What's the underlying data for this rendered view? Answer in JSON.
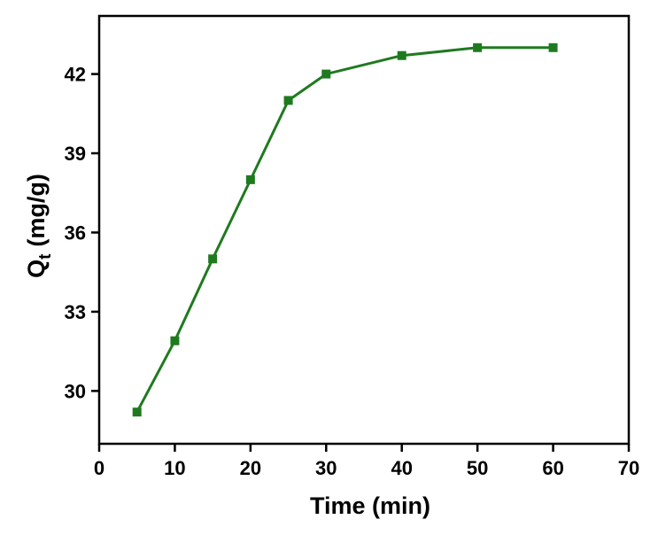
{
  "chart_data": {
    "type": "line",
    "title": "",
    "xlabel": "Time (min)",
    "ylabel": {
      "symbol": "Q",
      "subscript": "t",
      "unit": "(mg/g)"
    },
    "xlim": [
      0,
      70
    ],
    "ylim": [
      28,
      44.2
    ],
    "xticks": [
      0,
      10,
      20,
      30,
      40,
      50,
      60,
      70
    ],
    "yticks": [
      30,
      33,
      36,
      39,
      42
    ],
    "grid": false,
    "series": [
      {
        "name": "Qt",
        "color": "#1f7a1f",
        "marker": "square",
        "x": [
          5,
          10,
          15,
          20,
          25,
          30,
          40,
          50,
          60
        ],
        "y": [
          29.2,
          31.9,
          35.0,
          38.0,
          41.0,
          42.0,
          42.7,
          43.0,
          43.0
        ]
      }
    ]
  }
}
